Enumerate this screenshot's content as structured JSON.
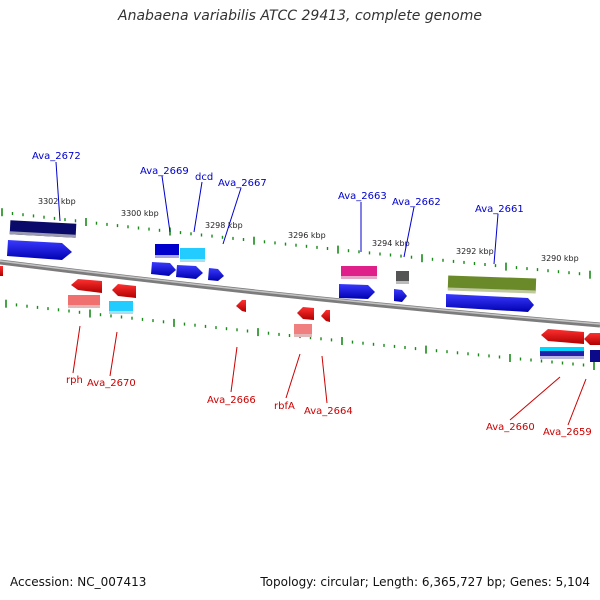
{
  "title": "Anabaena variabilis ATCC 29413, complete genome",
  "footer": {
    "accession": "Accession: NC_007413",
    "summary": "Topology: circular; Length: 6,365,727 bp; Genes: 5,104"
  },
  "colors": {
    "forward_label": "#0000cc",
    "reverse_label": "#cc0000",
    "backbone": "#8a8a8a",
    "tick": "#1a8a1a"
  },
  "ticks": [
    "3302 kbp",
    "3300 kbp",
    "3298 kbp",
    "3296 kbp",
    "3294 kbp",
    "3292 kbp",
    "3290 kbp"
  ],
  "forward_labels": [
    "Ava_2672",
    "Ava_2669",
    "dcd",
    "Ava_2667",
    "Ava_2663",
    "Ava_2662",
    "Ava_2661"
  ],
  "reverse_labels": [
    "rph",
    "Ava_2670",
    "Ava_2666",
    "rbfA",
    "Ava_2664",
    "Ava_2660",
    "Ava_2659"
  ]
}
